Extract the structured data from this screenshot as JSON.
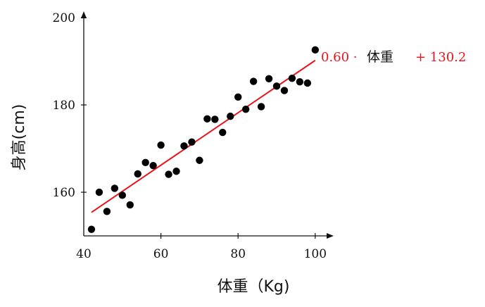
{
  "chart_data": {
    "type": "scatter",
    "title": "",
    "xlabel": "体重（Kg)",
    "ylabel": "身高(cm)",
    "xlim": [
      40,
      104
    ],
    "ylim": [
      150,
      200
    ],
    "x_ticks": [
      "40",
      "60",
      "80",
      "100"
    ],
    "y_ticks": [
      "160",
      "180",
      "200"
    ],
    "grid": false,
    "series": [
      {
        "type": "scatter",
        "color": "#000000",
        "x": [
          42,
          44,
          46,
          48,
          50,
          52,
          54,
          56,
          58,
          60,
          62,
          64,
          66,
          68,
          70,
          72,
          74,
          76,
          78,
          80,
          82,
          84,
          86,
          88,
          90,
          92,
          94,
          96,
          98,
          100
        ],
        "y": [
          151.5,
          160.0,
          155.6,
          160.9,
          159.3,
          157.1,
          164.2,
          166.8,
          166.1,
          170.8,
          164.1,
          164.8,
          170.6,
          171.5,
          167.3,
          176.8,
          176.7,
          173.7,
          177.4,
          181.8,
          179.0,
          185.4,
          179.6,
          186.0,
          184.3,
          183.3,
          186.1,
          185.3,
          185.0,
          192.6
        ]
      },
      {
        "type": "line",
        "color": "#e8141c",
        "slope": 0.6,
        "intercept": 130.2,
        "x_range": [
          42,
          100
        ]
      }
    ],
    "annotation": {
      "coef": "0.60 ·",
      "word": "体重",
      "const": "+ 130.2"
    }
  }
}
